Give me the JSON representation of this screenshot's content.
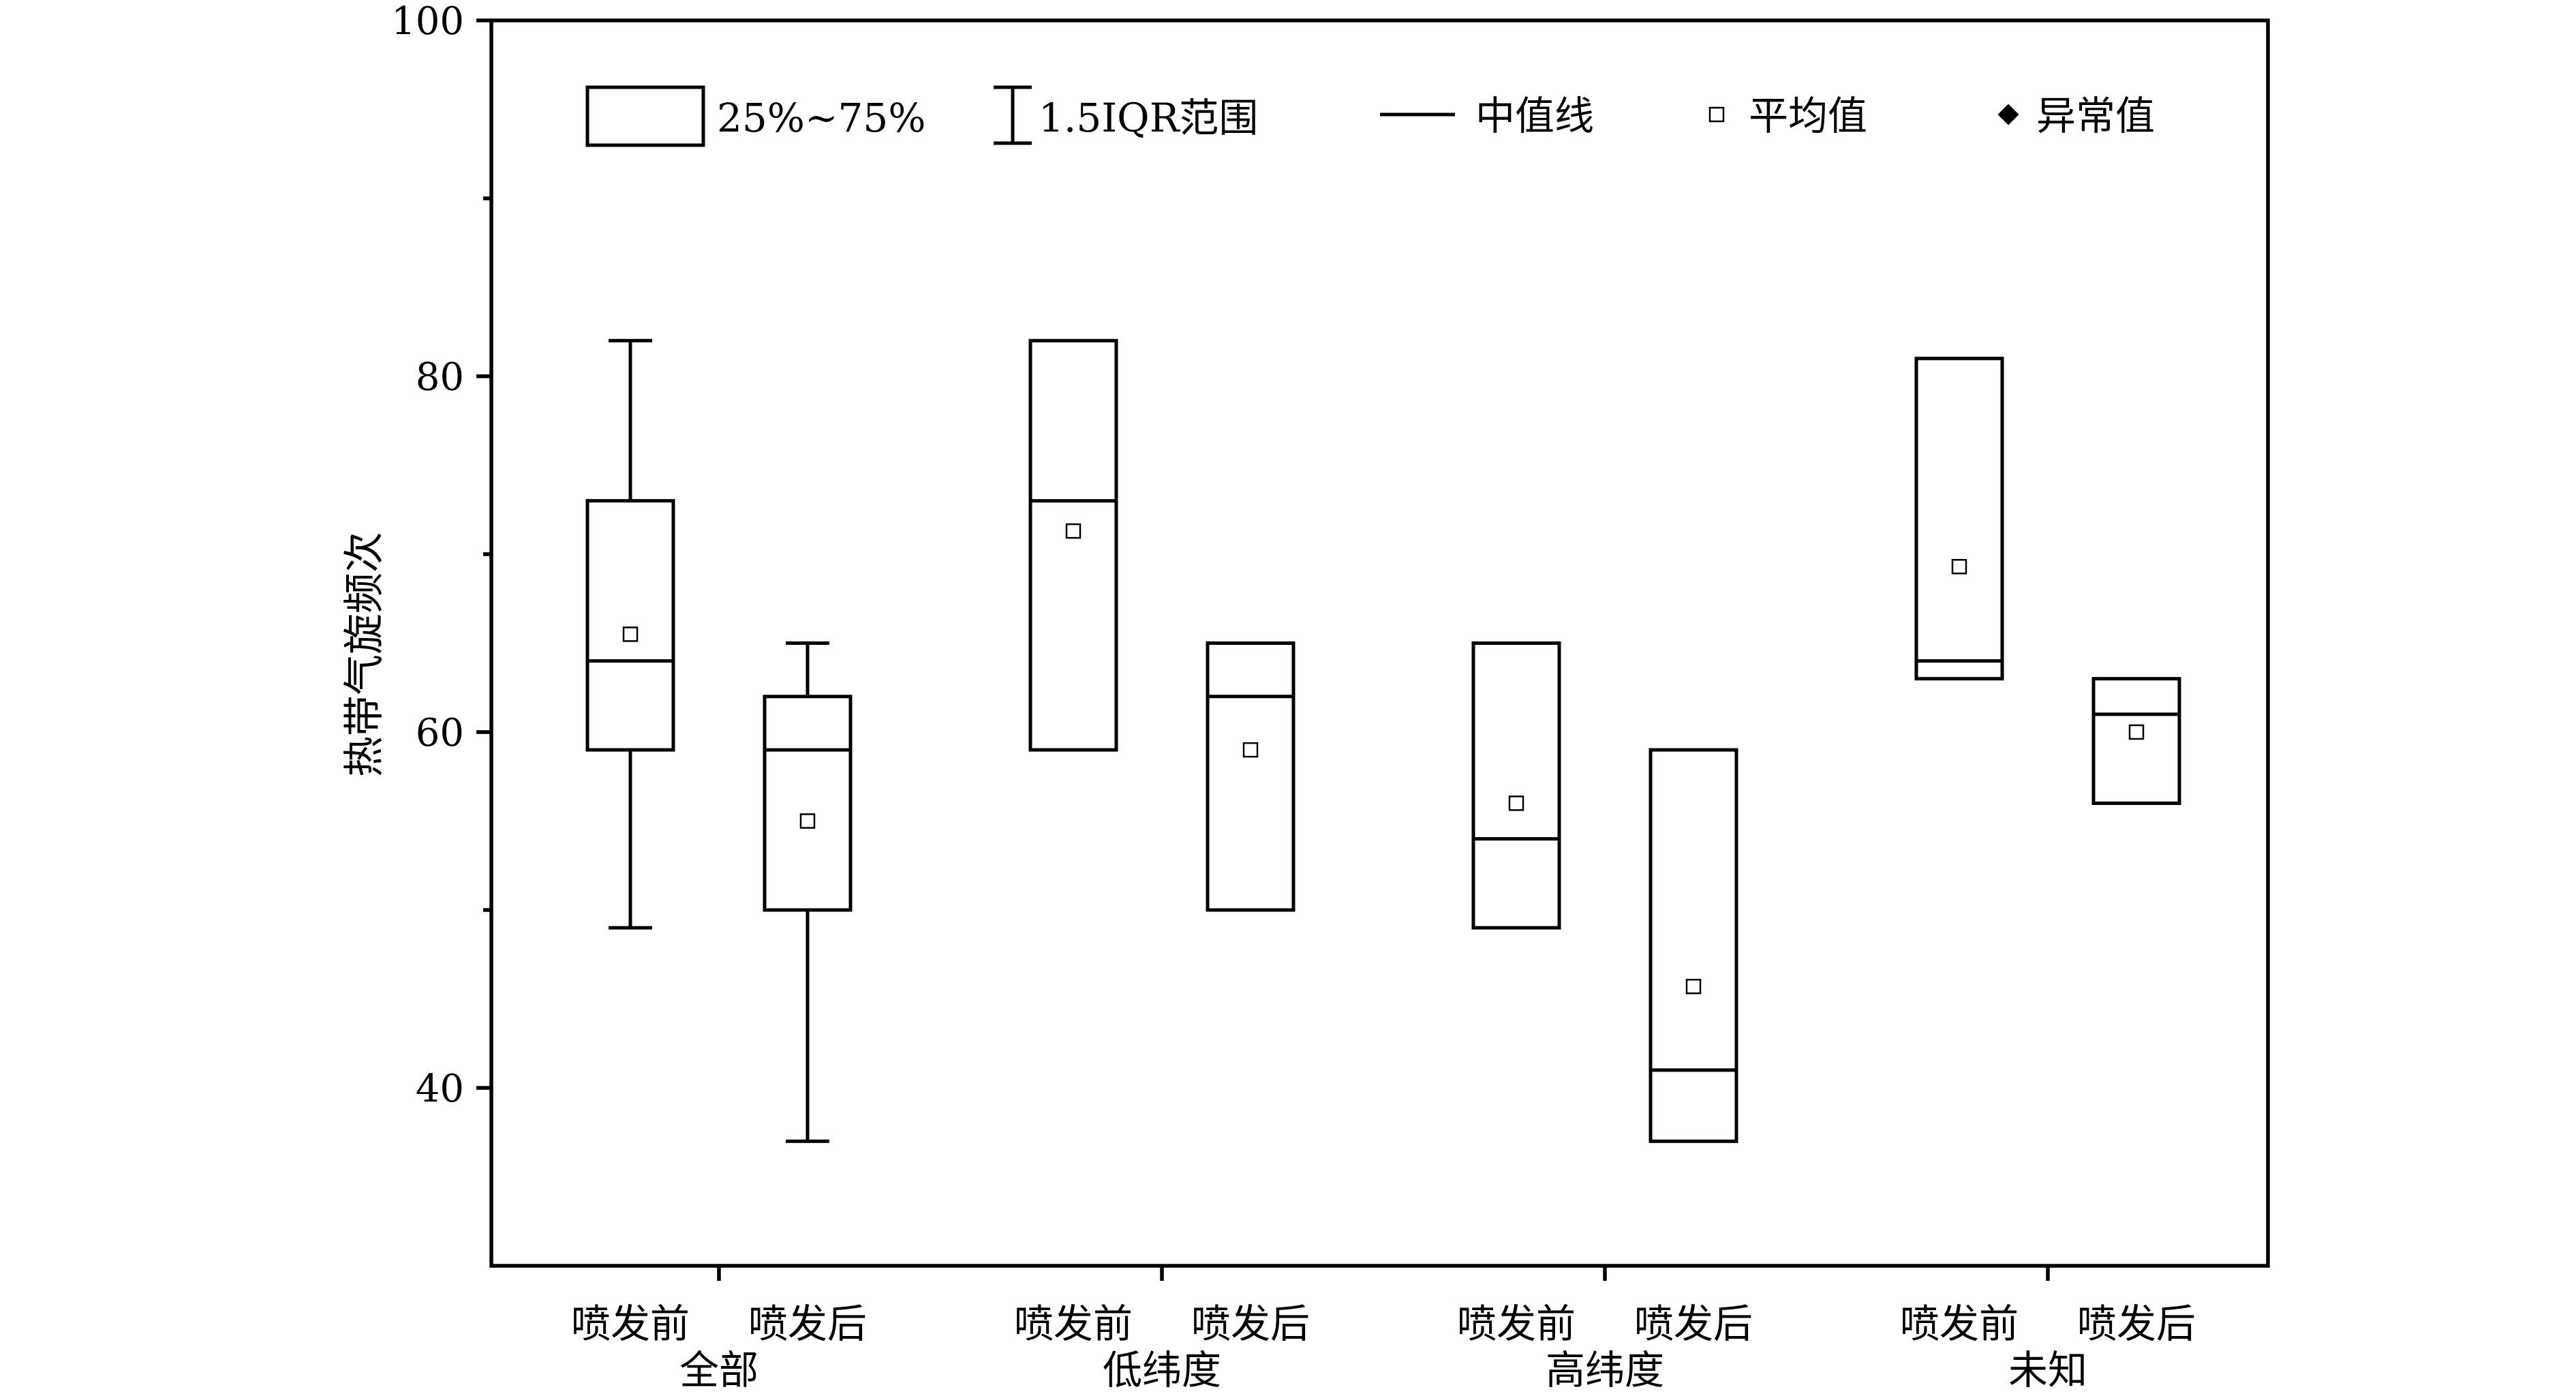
{
  "chart_data": {
    "type": "box",
    "ylabel": "热带气旋频次",
    "ylim": [
      30,
      100
    ],
    "y_ticks": [
      40,
      60,
      80,
      100
    ],
    "groups": [
      {
        "name": "全部",
        "sub_labels": [
          "喷发前",
          "喷发后"
        ]
      },
      {
        "name": "低纬度",
        "sub_labels": [
          "喷发前",
          "喷发后"
        ]
      },
      {
        "name": "高纬度",
        "sub_labels": [
          "喷发前",
          "喷发后"
        ]
      },
      {
        "name": "未知",
        "sub_labels": [
          "喷发前",
          "喷发后"
        ]
      }
    ],
    "boxes": [
      {
        "group": "全部",
        "period": "喷发前",
        "whisker_low": 49,
        "q1": 59,
        "median": 64,
        "q3": 73,
        "whisker_high": 82,
        "mean": 65.5
      },
      {
        "group": "全部",
        "period": "喷发后",
        "whisker_low": 37,
        "q1": 50,
        "median": 59,
        "q3": 62,
        "whisker_high": 65,
        "mean": 55
      },
      {
        "group": "低纬度",
        "period": "喷发前",
        "whisker_low": 59,
        "q1": 59,
        "median": 73,
        "q3": 82,
        "whisker_high": 82,
        "mean": 71.3
      },
      {
        "group": "低纬度",
        "period": "喷发后",
        "whisker_low": 50,
        "q1": 50,
        "median": 62,
        "q3": 65,
        "whisker_high": 65,
        "mean": 59
      },
      {
        "group": "高纬度",
        "period": "喷发前",
        "whisker_low": 49,
        "q1": 49,
        "median": 54,
        "q3": 65,
        "whisker_high": 65,
        "mean": 56
      },
      {
        "group": "高纬度",
        "period": "喷发后",
        "whisker_low": 37,
        "q1": 37,
        "median": 41,
        "q3": 59,
        "whisker_high": 59,
        "mean": 45.7
      },
      {
        "group": "未知",
        "period": "喷发前",
        "whisker_low": 63,
        "q1": 63,
        "median": 64,
        "q3": 81,
        "whisker_high": 81,
        "mean": 69.3
      },
      {
        "group": "未知",
        "period": "喷发后",
        "whisker_low": 56,
        "q1": 56,
        "median": 61,
        "q3": 63,
        "whisker_high": 63,
        "mean": 60
      }
    ],
    "legend": {
      "placement": "top",
      "items": [
        {
          "symbol": "box",
          "label": "25%~75%"
        },
        {
          "symbol": "whisker",
          "label": "1.5IQR范围"
        },
        {
          "symbol": "line",
          "label": "中值线"
        },
        {
          "symbol": "open-square",
          "label": "平均值"
        },
        {
          "symbol": "filled-diamond",
          "label": "异常值"
        }
      ]
    },
    "grid": false
  }
}
